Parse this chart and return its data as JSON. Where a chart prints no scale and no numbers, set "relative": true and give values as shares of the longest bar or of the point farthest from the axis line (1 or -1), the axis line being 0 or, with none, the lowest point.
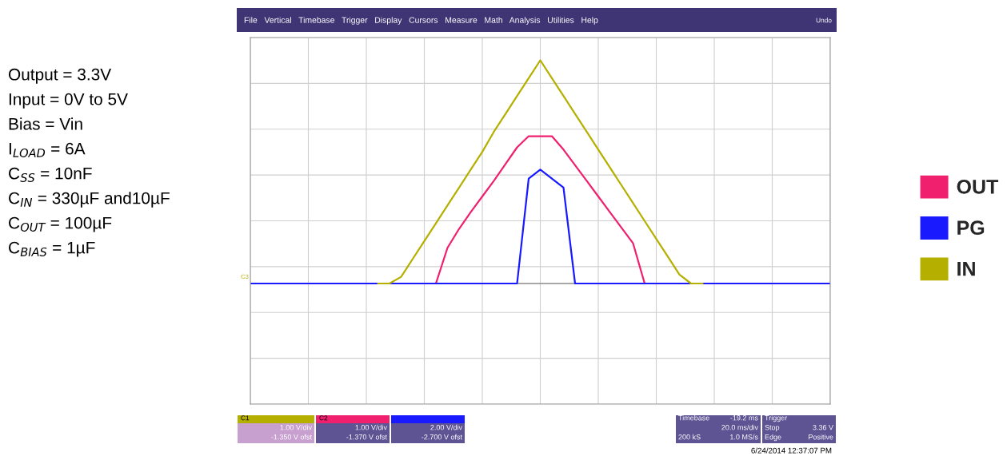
{
  "chart_data": {
    "type": "line",
    "relative": true,
    "grid": true,
    "legend": "right",
    "marker": "none",
    "line_style": "solid",
    "categories": [
      null,
      null,
      null,
      null,
      null,
      null,
      null,
      null,
      null,
      null,
      null,
      null,
      null,
      null,
      null,
      null,
      null,
      null,
      null,
      null,
      null,
      null,
      null,
      null,
      null,
      null,
      null,
      null,
      null,
      null,
      null,
      null,
      null,
      null,
      null,
      null,
      null,
      null,
      null,
      null,
      null,
      null,
      null,
      null,
      null,
      null,
      null,
      null,
      null,
      null,
      null
    ],
    "series": [
      {
        "name": "OUT",
        "color": "#f0206f",
        "values": [
          null,
          null,
          null,
          null,
          null,
          null,
          null,
          null,
          null,
          null,
          null,
          null,
          null,
          null,
          null,
          null,
          0,
          0.16,
          0.245,
          0.32,
          0.39,
          0.46,
          0.535,
          0.61,
          0.66,
          0.66,
          0.66,
          0.6,
          0.53,
          0.46,
          0.39,
          0.32,
          0.25,
          0.18,
          0,
          null,
          null,
          null,
          null,
          null,
          null,
          null,
          null,
          null,
          null,
          null,
          null,
          null,
          null,
          null,
          null
        ]
      },
      {
        "name": "PG",
        "color": "#1a1aff",
        "values": [
          0,
          0,
          0,
          0,
          0,
          0,
          0,
          0,
          0,
          0,
          0,
          0,
          0,
          0,
          0,
          0,
          0,
          0,
          0,
          0,
          0,
          0,
          0,
          0,
          0.47,
          0.51,
          0.47,
          0.43,
          0,
          0,
          0,
          0,
          0,
          0,
          0,
          0,
          0,
          0,
          0,
          0,
          0,
          0,
          0,
          0,
          0,
          0,
          0,
          0,
          0,
          0,
          0
        ]
      },
      {
        "name": "IN",
        "color": "#b5b000",
        "values": [
          null,
          null,
          null,
          null,
          null,
          null,
          null,
          null,
          null,
          null,
          null,
          0,
          0,
          0.03,
          0.11,
          0.19,
          0.27,
          0.35,
          0.43,
          0.51,
          0.59,
          0.68,
          0.76,
          0.84,
          0.92,
          1.0,
          0.92,
          0.84,
          0.76,
          0.68,
          0.6,
          0.52,
          0.44,
          0.36,
          0.28,
          0.2,
          0.12,
          0.04,
          0,
          0,
          null,
          null,
          null,
          null,
          null,
          null,
          null,
          null,
          null,
          null,
          null
        ]
      }
    ],
    "annotations": [
      "Output = 3.3V",
      "Input = 0V to 5V",
      "Bias = Vin",
      "I$_{LOAD}$ = 6A",
      "C$_{SS}$ = 10nF",
      "C$_{IN}$ = 330µF and10µF",
      "C$_{OUT}$ = 100µF",
      "C$_{BIAS}$ = 1µF",
      "File   Vertical   Timebase   Trigger   Display   Cursors   Measure   Math   Analysis   Utilities   Help",
      "Undo",
      "C1",
      "1.00 V/div",
      "-1.350 V ofst",
      "C2",
      "1.00 V/div",
      "-1.370 V ofst",
      "2.00 V/div",
      "-2.700 V ofst",
      "Timebase",
      "-19.2 ms",
      "20.0 ms/div",
      "200 kS",
      "1.0 MS/s",
      "Trigger",
      "Stop",
      "3.36 V",
      "Edge",
      "Positive",
      "6/24/2014 12:37:07 PM",
      "C3"
    ]
  }
}
